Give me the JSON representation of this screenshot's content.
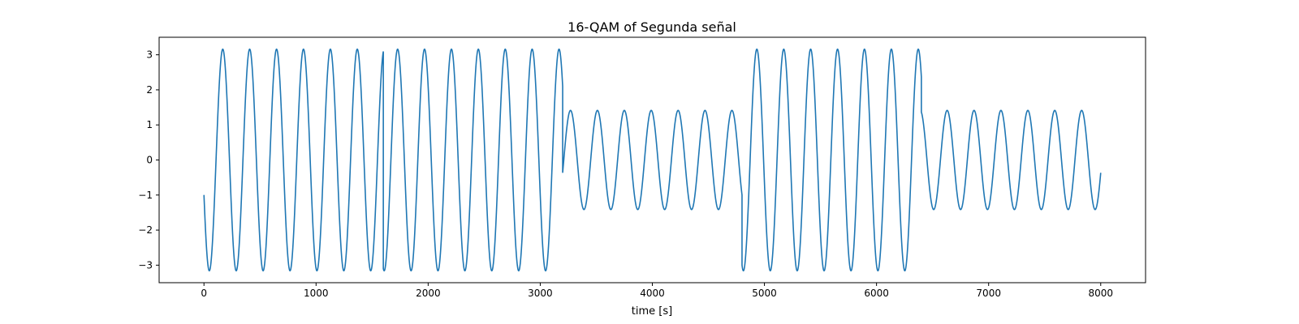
{
  "chart_data": {
    "type": "line",
    "title": "16-QAM of Segunda señal",
    "xlabel": "time [s]",
    "ylabel": "",
    "xlim": [
      -400,
      8400
    ],
    "ylim": [
      -3.5,
      3.5
    ],
    "xticks": [
      0,
      1000,
      2000,
      3000,
      4000,
      5000,
      6000,
      7000,
      8000
    ],
    "xtick_labels": [
      "0",
      "1000",
      "2000",
      "3000",
      "4000",
      "5000",
      "6000",
      "7000",
      "8000"
    ],
    "yticks": [
      -3,
      -2,
      -1,
      0,
      1,
      2,
      3
    ],
    "ytick_labels": [
      "−3",
      "−2",
      "−1",
      "0",
      "1",
      "2",
      "3"
    ],
    "grid": false,
    "legend": "none",
    "line_color": "#1f77b4",
    "series": [
      {
        "waveform": "A·cos(2π·t/period + phase)",
        "period": 240,
        "segments": [
          {
            "t_start": 0,
            "t_end": 1600,
            "amplitude": 3.16,
            "phase_deg": 108.4
          },
          {
            "t_start": 1600,
            "t_end": 3200,
            "amplitude": 3.16,
            "phase_deg": -71.6
          },
          {
            "t_start": 3200,
            "t_end": 4800,
            "amplitude": 1.414,
            "phase_deg": 135
          },
          {
            "t_start": 4800,
            "t_end": 6400,
            "amplitude": 3.16,
            "phase_deg": 161.6
          },
          {
            "t_start": 6400,
            "t_end": 8000,
            "amplitude": 1.414,
            "phase_deg": 135
          }
        ]
      }
    ]
  }
}
